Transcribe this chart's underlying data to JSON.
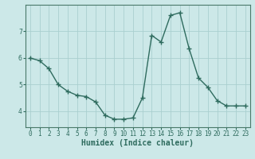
{
  "x": [
    0,
    1,
    2,
    3,
    4,
    5,
    6,
    7,
    8,
    9,
    10,
    11,
    12,
    13,
    14,
    15,
    16,
    17,
    18,
    19,
    20,
    21,
    22,
    23
  ],
  "y": [
    6.0,
    5.9,
    5.6,
    5.0,
    4.75,
    4.6,
    4.55,
    4.35,
    3.85,
    3.7,
    3.7,
    3.75,
    4.5,
    6.85,
    6.6,
    7.6,
    7.7,
    6.35,
    5.25,
    4.9,
    4.4,
    4.2,
    4.2,
    4.2
  ],
  "line_color": "#2e6b5e",
  "marker": "+",
  "marker_size": 4,
  "marker_linewidth": 1.0,
  "bg_color": "#cce8e8",
  "grid_color": "#aacfcf",
  "xlabel": "Humidex (Indice chaleur)",
  "xlim": [
    -0.5,
    23.5
  ],
  "ylim": [
    3.4,
    8.0
  ],
  "yticks": [
    4,
    5,
    6,
    7
  ],
  "xticks": [
    0,
    1,
    2,
    3,
    4,
    5,
    6,
    7,
    8,
    9,
    10,
    11,
    12,
    13,
    14,
    15,
    16,
    17,
    18,
    19,
    20,
    21,
    22,
    23
  ],
  "xtick_labels": [
    "0",
    "1",
    "2",
    "3",
    "4",
    "5",
    "6",
    "7",
    "8",
    "9",
    "10",
    "11",
    "12",
    "13",
    "14",
    "15",
    "16",
    "17",
    "18",
    "19",
    "20",
    "21",
    "22",
    "23"
  ],
  "tick_fontsize": 5.5,
  "label_fontsize": 7.0,
  "linewidth": 1.0
}
